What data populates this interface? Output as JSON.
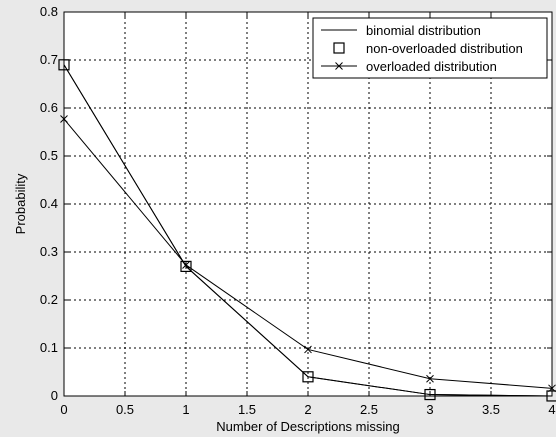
{
  "chart_data": {
    "type": "line",
    "title": "",
    "xlabel": "Number of Descriptions missing",
    "ylabel": "Probability",
    "xlim": [
      0,
      4
    ],
    "ylim": [
      0,
      0.8
    ],
    "grid": true,
    "legend_position": "top-right",
    "x": [
      0,
      1,
      2,
      3,
      4
    ],
    "x_ticks": [
      "0",
      "0.5",
      "1",
      "1.5",
      "2",
      "2.5",
      "3",
      "3.5",
      "4"
    ],
    "y_ticks": [
      "0",
      "0.1",
      "0.2",
      "0.3",
      "0.4",
      "0.5",
      "0.6",
      "0.7",
      "0.8"
    ],
    "series": [
      {
        "name": "binomial distribution",
        "marker": "none",
        "values": [
          0.69,
          0.27,
          0.04,
          0.003,
          0.0001
        ]
      },
      {
        "name": "non-overloaded distribution",
        "marker": "square",
        "values": [
          0.69,
          0.27,
          0.04,
          0.003,
          0.0001
        ]
      },
      {
        "name": "overloaded distribution",
        "marker": "x",
        "values": [
          0.577,
          0.273,
          0.097,
          0.036,
          0.016
        ]
      }
    ]
  }
}
